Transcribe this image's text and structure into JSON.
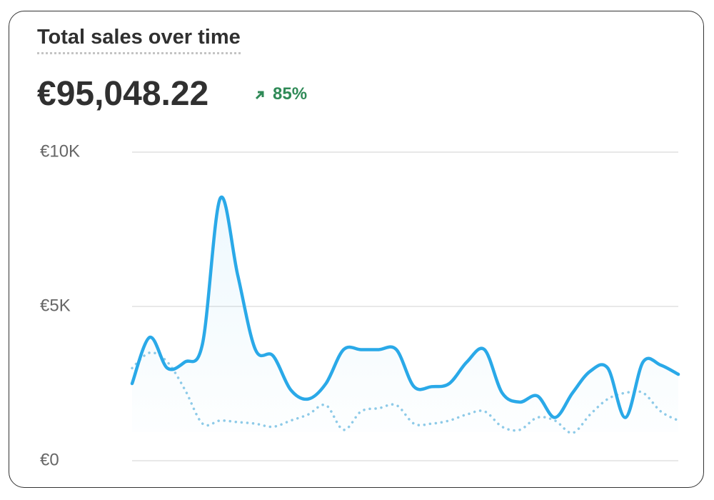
{
  "chart_data": {
    "type": "line",
    "title": "Total sales over time",
    "total": "€95,048.22",
    "change": "85%",
    "categories": [
      null,
      null,
      null,
      null,
      null,
      null,
      null,
      null,
      null,
      null,
      null,
      null,
      null,
      null,
      null,
      null,
      null,
      null,
      null,
      null,
      null,
      null,
      null,
      null,
      null,
      null,
      null,
      null,
      null,
      null,
      null,
      null
    ],
    "series": [
      {
        "color": "#2aa9e8",
        "style": "solid",
        "values": [
          2500,
          4000,
          3000,
          3200,
          3800,
          8500,
          6000,
          3600,
          3400,
          2300,
          2000,
          2500,
          3600,
          3600,
          3600,
          3600,
          2400,
          2400,
          2500,
          3200,
          3600,
          2200,
          1900,
          2100,
          1400,
          2200,
          2900,
          3000,
          1400,
          3200,
          3100,
          2800
        ]
      },
      {
        "color": "#8fcbe8",
        "style": "dotted",
        "values": [
          3000,
          3500,
          3200,
          2300,
          1200,
          1300,
          1250,
          1200,
          1100,
          1300,
          1500,
          1800,
          1000,
          1600,
          1700,
          1800,
          1200,
          1200,
          1300,
          1500,
          1600,
          1100,
          1000,
          1400,
          1300,
          900,
          1500,
          2000,
          2200,
          2200,
          1600,
          1300
        ]
      }
    ],
    "ylim": [
      0,
      10000
    ],
    "yticks": [
      {
        "value": 0,
        "label": "€0"
      },
      {
        "value": 5000,
        "label": "€5K"
      },
      {
        "value": 10000,
        "label": "€10K"
      }
    ],
    "grid": true
  }
}
